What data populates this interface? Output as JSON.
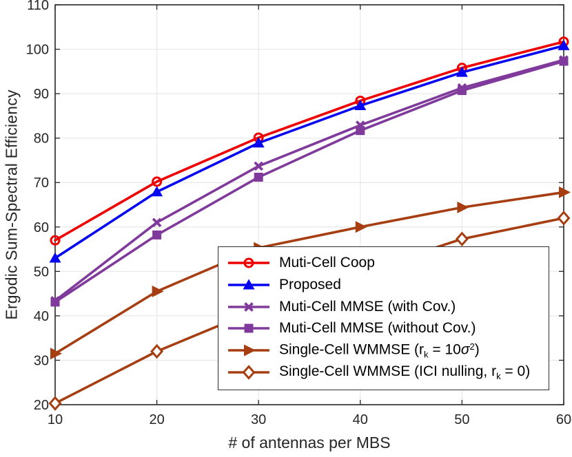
{
  "figure": {
    "background": "#ffffff",
    "axis_color": "#262626",
    "grid_color": "#e7e7e7",
    "legend_border_color": "#2e2e2e"
  },
  "chart_data": {
    "type": "line",
    "title": "",
    "xlabel": "# of antennas per MBS",
    "ylabel": "Ergodic Sum-Spectral Efficiency",
    "xlim": [
      10,
      60
    ],
    "ylim": [
      20,
      110
    ],
    "xticks": [
      10,
      20,
      30,
      40,
      50,
      60
    ],
    "yticks": [
      20,
      30,
      40,
      50,
      60,
      70,
      80,
      90,
      100,
      110
    ],
    "grid": true,
    "legend_position": "inside-lower-right",
    "x": [
      10,
      20,
      30,
      40,
      50,
      60
    ],
    "series": [
      {
        "name": "Muti-Cell Coop",
        "color": "#ee0000",
        "marker": "circle",
        "values": [
          57.0,
          70.2,
          80.1,
          88.4,
          95.8,
          101.7
        ]
      },
      {
        "name": "Proposed",
        "color": "#0505f0",
        "marker": "triangle-up",
        "values": [
          53.0,
          67.9,
          78.9,
          87.3,
          94.8,
          100.8
        ]
      },
      {
        "name": "Muti-Cell MMSE (with Cov.)",
        "color": "#7f3a9b",
        "marker": "x",
        "values": [
          43.4,
          61.0,
          73.7,
          82.9,
          91.3,
          97.6
        ]
      },
      {
        "name": "Muti-Cell MMSE (without Cov.)",
        "color": "#7f3a9b",
        "marker": "square",
        "values": [
          43.1,
          58.2,
          71.2,
          81.7,
          90.7,
          97.3
        ]
      },
      {
        "name": "Single-Cell WMMSE (r_k = 10σ^2)",
        "color": "#a63e12",
        "marker": "triangle-right",
        "values": [
          31.5,
          45.5,
          55.3,
          60.0,
          64.4,
          67.8
        ]
      },
      {
        "name": "Single-Cell WMMSE (ICI nulling, r_k = 0)",
        "color": "#a63e12",
        "marker": "diamond",
        "values": [
          20.3,
          32.0,
          41.5,
          49.8,
          57.3,
          62.0
        ]
      }
    ]
  },
  "legend": {
    "items": [
      {
        "series": 0,
        "parts": [
          {
            "t": "Muti-Cell Coop"
          }
        ]
      },
      {
        "series": 1,
        "parts": [
          {
            "t": "Proposed"
          }
        ]
      },
      {
        "series": 2,
        "parts": [
          {
            "t": "Muti-Cell MMSE (with Cov.)"
          }
        ]
      },
      {
        "series": 3,
        "parts": [
          {
            "t": "Muti-Cell MMSE (without Cov.)"
          }
        ]
      },
      {
        "series": 4,
        "parts": [
          {
            "t": "Single-Cell WMMSE (r"
          },
          {
            "t": "k",
            "style": "sub"
          },
          {
            "t": " = 10"
          },
          {
            "t": "σ",
            "style": "italic"
          },
          {
            "t": "2",
            "style": "sup"
          },
          {
            "t": ")"
          }
        ]
      },
      {
        "series": 5,
        "parts": [
          {
            "t": "Single-Cell WMMSE (ICI nulling, r"
          },
          {
            "t": "k",
            "style": "sub"
          },
          {
            "t": " = 0)"
          }
        ]
      }
    ]
  }
}
